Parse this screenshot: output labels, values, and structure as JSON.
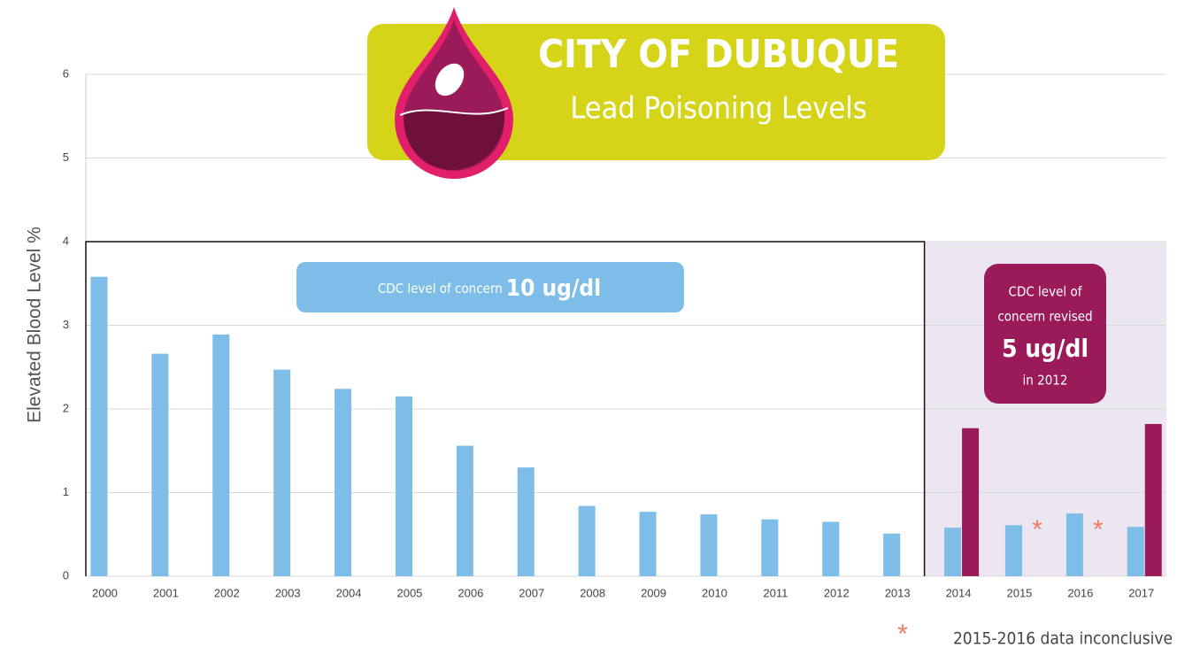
{
  "chart_data": {
    "type": "bar",
    "title": "CITY OF DUBUQUE",
    "subtitle": "Lead Poisoning Levels",
    "y_label": "Elevated Blood Level %",
    "categories": [
      "2000",
      "2001",
      "2002",
      "2003",
      "2004",
      "2005",
      "2006",
      "2007",
      "2008",
      "2009",
      "2010",
      "2011",
      "2012",
      "2013",
      "2014",
      "2015",
      "2016",
      "2017"
    ],
    "series": [
      {
        "color": "#7dbde8",
        "values": [
          3.58,
          2.66,
          2.89,
          2.47,
          2.24,
          2.15,
          1.56,
          1.3,
          0.84,
          0.77,
          0.74,
          0.68,
          0.65,
          0.51,
          0.58,
          0.61,
          0.75,
          0.59
        ]
      },
      {
        "color": "#9b1b5a",
        "values": [
          null,
          null,
          null,
          null,
          null,
          null,
          null,
          null,
          null,
          null,
          null,
          null,
          null,
          null,
          1.77,
          null,
          null,
          1.82
        ]
      }
    ],
    "ylim": [
      0,
      6
    ],
    "yticks": [
      0,
      1,
      2,
      3,
      4,
      5,
      6
    ],
    "grid": true,
    "annotations": [
      {
        "text": "*",
        "x": "2015",
        "color": "#ef7b5e"
      },
      {
        "text": "*",
        "x": "2016",
        "color": "#ef7b5e"
      }
    ],
    "boxes": {
      "old": {
        "text": "CDC level of concern",
        "value": "10 ug/dl"
      },
      "revised": {
        "lines": [
          "CDC level of",
          "concern revised"
        ],
        "value": "5 ug/dl",
        "note": "in 2012"
      }
    },
    "footnote": {
      "marker": "*",
      "text": "2015-2016 data inconclusive"
    }
  }
}
